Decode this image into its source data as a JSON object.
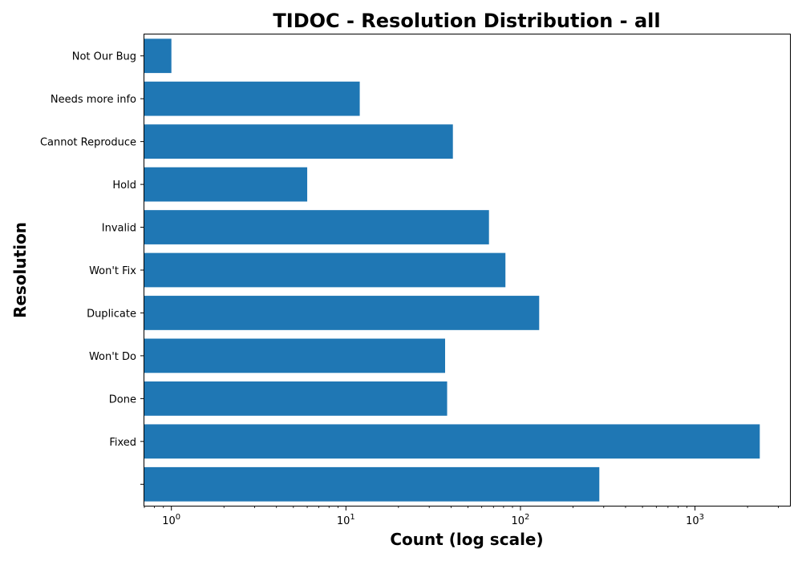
{
  "chart_data": {
    "type": "bar",
    "orientation": "horizontal",
    "title": "TIDOC - Resolution Distribution - all",
    "xlabel": "Count (log scale)",
    "ylabel": "Resolution",
    "xscale": "log",
    "xlim": [
      0.7,
      3500
    ],
    "x_ticks": [
      {
        "value": 1,
        "base": "10",
        "exp": "0"
      },
      {
        "value": 10,
        "base": "10",
        "exp": "1"
      },
      {
        "value": 100,
        "base": "10",
        "exp": "2"
      },
      {
        "value": 1000,
        "base": "10",
        "exp": "3"
      }
    ],
    "categories": [
      "",
      "Fixed",
      "Done",
      "Won't Do",
      "Duplicate",
      "Won't Fix",
      "Invalid",
      "Hold",
      "Cannot Reproduce",
      "Needs more info",
      "Not Our Bug"
    ],
    "values": [
      283,
      2350,
      38,
      37,
      128,
      82,
      66,
      6,
      41,
      12,
      1
    ],
    "bar_color": "#1f77b4",
    "grid": false
  }
}
